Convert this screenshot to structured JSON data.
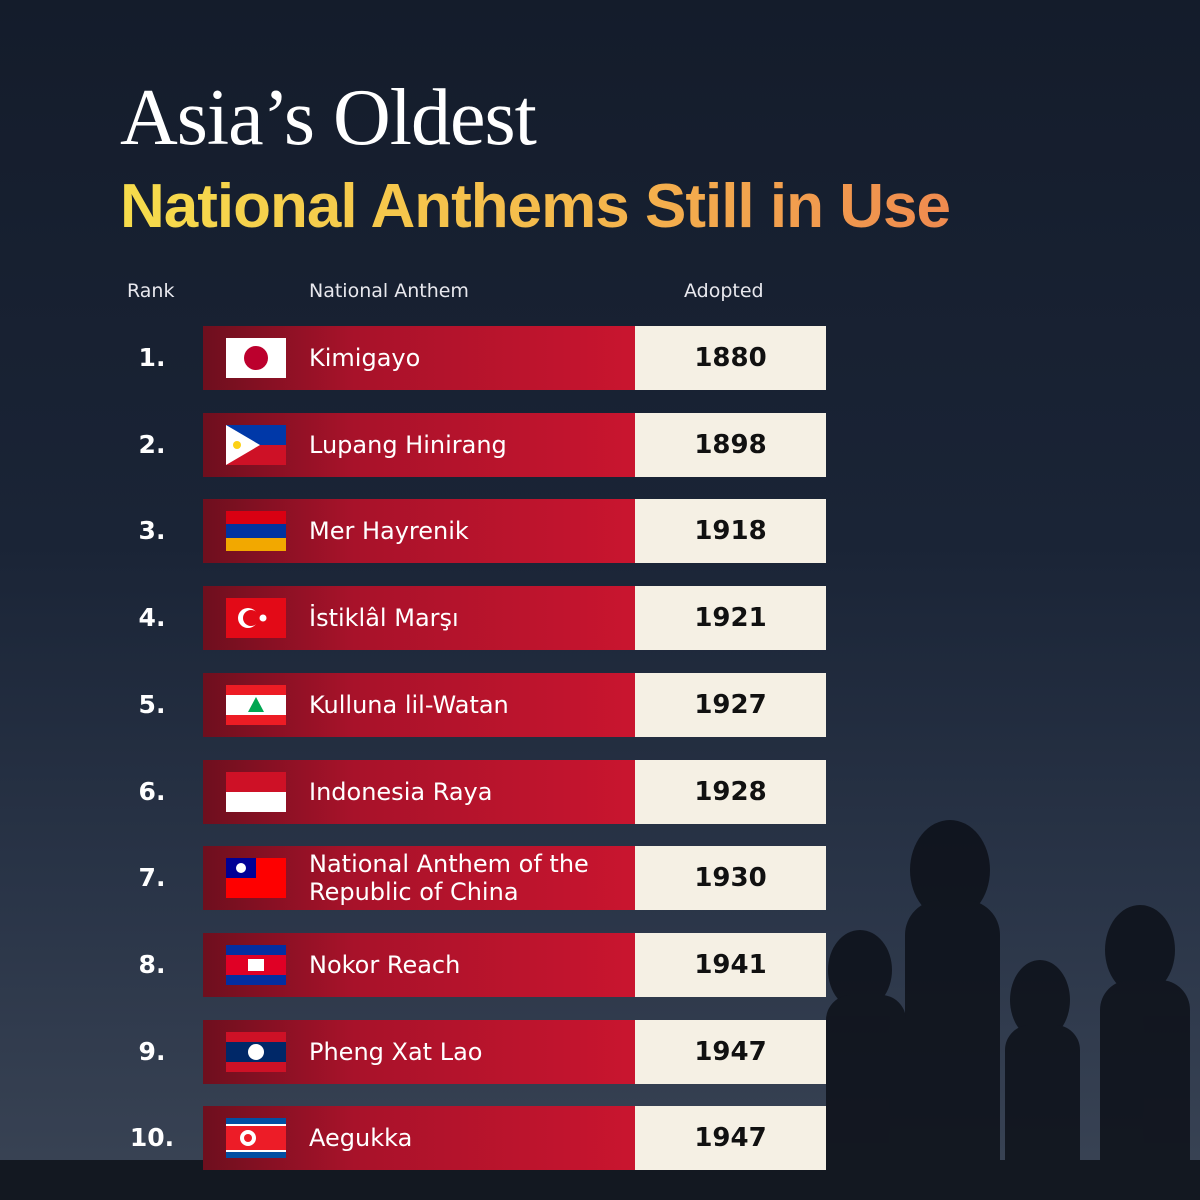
{
  "header": {
    "title": "Asia’s Oldest",
    "subtitle": "National Anthems Still in Use"
  },
  "table": {
    "columns": [
      "Rank",
      "National Anthem",
      "Adopted"
    ],
    "rows": [
      [
        "1.",
        "Kimigayo",
        1880
      ],
      [
        "2.",
        "Lupang Hinirang",
        1898
      ],
      [
        "3.",
        "Mer Hayrenik",
        1918
      ],
      [
        "4.",
        "İstiklâl Marşı",
        1921
      ],
      [
        "5.",
        "Kulluna lil-Watan",
        1927
      ],
      [
        "6.",
        "Indonesia Raya",
        1928
      ],
      [
        "7.",
        "National Anthem of the Republic of China",
        1930
      ],
      [
        "8.",
        "Nokor Reach",
        1941
      ],
      [
        "9.",
        "Pheng Xat Lao",
        1947
      ],
      [
        "10.",
        "Aegukka",
        1947
      ]
    ]
  }
}
